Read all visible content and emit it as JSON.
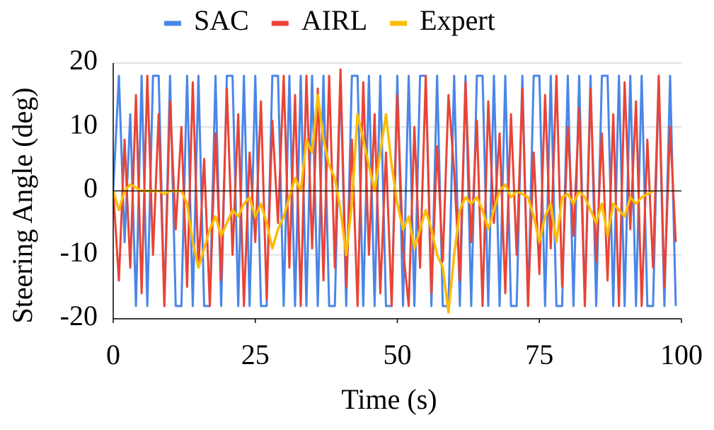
{
  "chart_data": {
    "type": "line",
    "xlabel": "Time (s)",
    "ylabel": "Steering Angle (deg)",
    "x": [
      0,
      1,
      2,
      3,
      4,
      5,
      6,
      7,
      8,
      9,
      10,
      11,
      12,
      13,
      14,
      15,
      16,
      17,
      18,
      19,
      20,
      21,
      22,
      23,
      24,
      25,
      26,
      27,
      28,
      29,
      30,
      31,
      32,
      33,
      34,
      35,
      36,
      37,
      38,
      39,
      40,
      41,
      42,
      43,
      44,
      45,
      46,
      47,
      48,
      49,
      50,
      51,
      52,
      53,
      54,
      55,
      56,
      57,
      58,
      59,
      60,
      61,
      62,
      63,
      64,
      65,
      66,
      67,
      68,
      69,
      70,
      71,
      72,
      73,
      74,
      75,
      76,
      77,
      78,
      79,
      80,
      81,
      82,
      83,
      84,
      85,
      86,
      87,
      88,
      89,
      90,
      91,
      92,
      93,
      94,
      95,
      96,
      97,
      98,
      99
    ],
    "series": [
      {
        "name": "SAC",
        "color": "#4a86e8",
        "values": [
          0,
          18,
          -8,
          12,
          -18,
          18,
          -18,
          18,
          18,
          -18,
          18,
          -18,
          -18,
          18,
          -18,
          18,
          -18,
          -18,
          18,
          -18,
          18,
          18,
          -18,
          18,
          -18,
          18,
          -18,
          -18,
          18,
          18,
          -18,
          18,
          -18,
          18,
          -18,
          18,
          -18,
          18,
          -18,
          -18,
          18,
          -18,
          18,
          18,
          -18,
          18,
          -18,
          18,
          -18,
          -18,
          18,
          -18,
          18,
          -18,
          18,
          18,
          -18,
          18,
          -18,
          -18,
          18,
          -18,
          18,
          -18,
          18,
          18,
          -18,
          18,
          -18,
          18,
          -18,
          -18,
          18,
          -18,
          18,
          18,
          -18,
          18,
          -18,
          -18,
          18,
          -18,
          18,
          -18,
          18,
          -18,
          18,
          18,
          -18,
          18,
          -18,
          18,
          -18,
          18,
          -18,
          -18,
          18,
          -18,
          18,
          -18
        ]
      },
      {
        "name": "AIRL",
        "color": "#ea4335",
        "values": [
          0,
          -14,
          8,
          -12,
          15,
          -16,
          18,
          -10,
          12,
          -18,
          14,
          -6,
          10,
          -15,
          17,
          -12,
          5,
          -18,
          9,
          -14,
          16,
          -10,
          12,
          -18,
          6,
          -8,
          14,
          -17,
          11,
          -5,
          18,
          -12,
          15,
          -18,
          18,
          -9,
          16,
          -14,
          18,
          -12,
          19,
          -15,
          8,
          -18,
          17,
          -10,
          12,
          -16,
          6,
          -18,
          15,
          -9,
          -18,
          10,
          -12,
          18,
          -16,
          7,
          -11,
          15,
          3,
          -14,
          17,
          -8,
          11,
          -18,
          14,
          -5,
          9,
          -16,
          12,
          -10,
          16,
          -18,
          6,
          -13,
          15,
          -9,
          18,
          -15,
          10,
          -7,
          13,
          -18,
          16,
          -11,
          9,
          -14,
          12,
          -18,
          17,
          -6,
          14,
          -18,
          8,
          -12,
          18,
          -15,
          10,
          -8
        ]
      },
      {
        "name": "Expert",
        "color": "#fbbc04",
        "values": [
          0,
          -3,
          0,
          1,
          0.5,
          0,
          0,
          0,
          0,
          -0.5,
          0,
          0,
          0,
          -2,
          -8,
          -12,
          -9,
          -6,
          -4,
          -7,
          -5,
          -3,
          -4,
          -2,
          -1,
          -4,
          -2,
          -5,
          -9,
          -6,
          -4,
          -1,
          2,
          0,
          8,
          6,
          15,
          8,
          4,
          2,
          -3,
          -10,
          -2,
          12,
          8,
          4,
          0,
          6,
          12,
          4,
          -2,
          -6,
          -4,
          -9,
          -6,
          -3,
          -6,
          -10,
          -12,
          -19,
          -10,
          -3,
          -1,
          -2,
          -1,
          -3,
          -6,
          -3,
          0,
          1,
          -1,
          0,
          -0.5,
          -1,
          -4,
          -8,
          -4,
          -2,
          -8,
          -1,
          -0.5,
          -2,
          0,
          -1,
          -3,
          -5,
          -2,
          -7,
          -2,
          -3,
          -4,
          -1,
          -2,
          -1,
          -0.5,
          0,
          null,
          null,
          null,
          null
        ]
      }
    ],
    "xlim": [
      0,
      100
    ],
    "xticks": [
      0,
      25,
      50,
      75,
      100
    ],
    "ylim": [
      -20,
      20
    ],
    "yticks": [
      20,
      10,
      0,
      -10,
      -20
    ],
    "grid": true,
    "legend": "top"
  }
}
